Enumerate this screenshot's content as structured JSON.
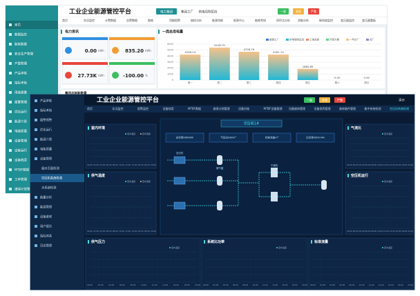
{
  "chart_data": {
    "type": "bar",
    "title": "一周总用电量",
    "categories": [
      "周一",
      "周二",
      "周三",
      "周四",
      "周五",
      "周六",
      "周日"
    ],
    "values": [
      4256.24,
      5418.79,
      4728.79,
      4261.74,
      1860.85,
      0,
      0
    ],
    "value_labels": [
      "4256.24",
      "5418.79",
      "4728.79",
      "4261.74",
      "1860.85",
      "0.00",
      "0.00"
    ],
    "ylim": [
      0,
      6000
    ],
    "yticks": [
      0,
      1000,
      2000,
      3000,
      4000,
      5000,
      6000
    ],
    "grid": true,
    "color_top": "#f5c28a",
    "color_bottom": "#22b8d6",
    "legend": [
      {
        "name": "能源工厂",
        "color": "#3a7bd5"
      },
      {
        "name": "供电局院区段",
        "color": "#22b8d6"
      },
      {
        "name": "上海总部",
        "color": "#f08a5d"
      },
      {
        "name": "环保大楼",
        "color": "#5fd08a"
      },
      {
        "name": "一号分厂",
        "color": "#f5c28a"
      },
      {
        "name": "总厂",
        "color": "#9b7fd4"
      }
    ]
  },
  "back": {
    "title": "工业企业能源管控平台",
    "header_tabs": [
      "电工集团",
      "集团工厂",
      "供电局院区段"
    ],
    "badges": [
      "一般",
      "紧急",
      "严重"
    ],
    "sidebar": [
      "首页",
      "数据监控",
      "能耗数据",
      "安全生产管理",
      "产量管理",
      "产品单耗",
      "指标考核",
      "用能报警",
      "报警管理",
      "优化运行",
      "能源介质",
      "电能质量",
      "设备管理",
      "设备运行",
      "设备档案",
      "MTBF数据",
      "工单管理",
      "维保计划管理"
    ],
    "nav": [
      "首页",
      "实况监控",
      "计费数据",
      "告警数据",
      "能耗",
      "用能报警",
      "抽检分析",
      "能源消耗",
      "报表中心",
      "能耗考核",
      "同环比分析",
      "须能分析",
      "碳排放监控",
      "变压器监控",
      "变压器看板"
    ],
    "power": {
      "title": "电力资讯",
      "items": [
        {
          "value": "0.00",
          "unit": "kWh"
        },
        {
          "value": "835.20",
          "unit": "kWh"
        },
        {
          "value": "27.73K",
          "unit": "kWh"
        },
        {
          "value": "-100.00",
          "unit": "%"
        }
      ]
    },
    "section": "集团总耗能数量"
  },
  "front": {
    "title": "工业企业能源管控平台",
    "badges": [
      "一般",
      "紧急",
      "严重"
    ],
    "user": "演示",
    "nav": [
      "首页",
      "实况监控",
      "报警监控",
      "设备档案",
      "MTBF数据",
      "维保计划管理",
      "设备台账",
      "MTBF设备管理",
      "设备维修管理",
      "设备保养管理",
      "维修备件管理",
      "能中系统检测",
      "空压机系统检测"
    ],
    "sidebar": [
      "产品单耗",
      "指标考核",
      "报警预警",
      "优化运行",
      "能源介质",
      "电能质量",
      "设备管理"
    ],
    "submenu": [
      "展示页面检测",
      "空压机系统检测",
      "水系统检测"
    ],
    "sidebar_after": [
      "能量分析",
      "能源管理",
      "设备维修",
      "用户报告",
      "指标体系",
      "日志管理"
    ],
    "panels": [
      "室内环境",
      "供气温度",
      "气流比",
      "空压机运行",
      "供气压力",
      "系统比功率",
      "标准流量"
    ],
    "panel_legends": [
      "室内温度",
      "室内湿度"
    ],
    "diagram": {
      "title": "空压机1#",
      "boxes": [
        "总功率kW/kWh",
        "气压比kW/m³",
        "标准流量m³",
        "比功率kW/h·MA"
      ],
      "nodes": [
        "空压机",
        "储气罐",
        "干燥机"
      ]
    },
    "times": [
      "00:00",
      "02:00",
      "04:00",
      "06:00",
      "08:00",
      "10:00",
      "12:00",
      "14:00",
      "16:00",
      "18:00",
      "20:00"
    ]
  }
}
